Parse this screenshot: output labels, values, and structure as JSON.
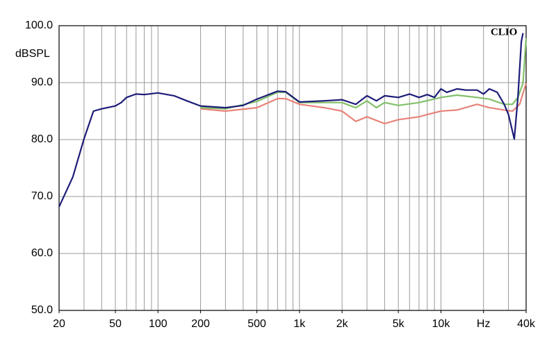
{
  "chart_data": {
    "type": "line",
    "x_scale": "log",
    "y_label": "dBSPL",
    "annotation": "CLIO",
    "xlim": [
      20,
      40000
    ],
    "ylim": [
      50,
      100
    ],
    "xticks": [
      20,
      50,
      100,
      200,
      500,
      {
        "value": 1000,
        "label": "1k"
      },
      {
        "value": 2000,
        "label": "2k"
      },
      {
        "value": 5000,
        "label": "5k"
      },
      {
        "value": 10000,
        "label": "10k"
      },
      {
        "value": 20000,
        "label": "Hz"
      },
      {
        "value": 40000,
        "label": "40k"
      }
    ],
    "xgrid": [
      20,
      30,
      40,
      50,
      60,
      70,
      80,
      90,
      100,
      200,
      300,
      400,
      500,
      600,
      700,
      800,
      900,
      1000,
      2000,
      3000,
      4000,
      5000,
      6000,
      7000,
      8000,
      9000,
      10000,
      20000,
      30000,
      40000
    ],
    "yticks": [
      {
        "value": 50,
        "label": "50.0"
      },
      {
        "value": 60,
        "label": "60.0"
      },
      {
        "value": 70,
        "label": "70.0"
      },
      {
        "value": 80,
        "label": "80.0"
      },
      {
        "value": 90,
        "label": "90.0"
      },
      {
        "value": 100,
        "label": "100.0"
      }
    ],
    "grid": true,
    "series": [
      {
        "color": "#e8837a",
        "x": [
          200,
          300,
          500,
          700,
          800,
          1000,
          1500,
          2000,
          2500,
          3000,
          4000,
          5000,
          7000,
          8000,
          10000,
          13000,
          18000,
          22000,
          28000,
          32000,
          36000,
          40000
        ],
        "values": [
          85.4,
          85.0,
          85.6,
          87.2,
          87.2,
          86.2,
          85.6,
          85.0,
          83.2,
          84.0,
          82.8,
          83.5,
          84.0,
          84.4,
          85.0,
          85.2,
          86.2,
          85.6,
          85.2,
          85.0,
          86.2,
          89.9
        ]
      },
      {
        "color": "#82c06a",
        "x": [
          200,
          300,
          500,
          700,
          800,
          1000,
          1500,
          2000,
          2500,
          3000,
          3500,
          4000,
          5000,
          7000,
          10000,
          13000,
          18000,
          22000,
          28000,
          32000,
          35000,
          38000,
          40000
        ],
        "values": [
          85.6,
          85.4,
          86.7,
          88.3,
          88.3,
          86.5,
          86.5,
          86.5,
          85.6,
          86.8,
          85.6,
          86.5,
          86.0,
          86.5,
          87.4,
          87.8,
          87.4,
          87.1,
          86.2,
          86.2,
          87.4,
          89.9,
          97.8
        ]
      },
      {
        "color": "#1c1c78",
        "x": [
          20,
          25,
          30,
          35,
          40,
          50,
          55,
          60,
          70,
          80,
          100,
          130,
          160,
          200,
          300,
          400,
          500,
          700,
          800,
          1000,
          1500,
          2000,
          2500,
          3000,
          3500,
          4000,
          5000,
          6000,
          7000,
          8000,
          9000,
          10000,
          11000,
          13000,
          15000,
          18000,
          20000,
          22000,
          25000,
          28000,
          30000,
          33000,
          35000,
          37000,
          38000
        ],
        "values": [
          68.2,
          73.4,
          80.1,
          85.0,
          85.4,
          85.9,
          86.5,
          87.4,
          88.0,
          87.9,
          88.2,
          87.7,
          86.8,
          85.9,
          85.6,
          86.0,
          87.1,
          88.5,
          88.4,
          86.6,
          86.8,
          87.0,
          86.2,
          87.7,
          86.8,
          87.7,
          87.4,
          88.0,
          87.4,
          87.9,
          87.4,
          88.9,
          88.3,
          88.9,
          88.7,
          88.7,
          88.0,
          88.9,
          88.3,
          86.2,
          84.4,
          80.1,
          87.4,
          97.2,
          98.7
        ]
      }
    ]
  }
}
